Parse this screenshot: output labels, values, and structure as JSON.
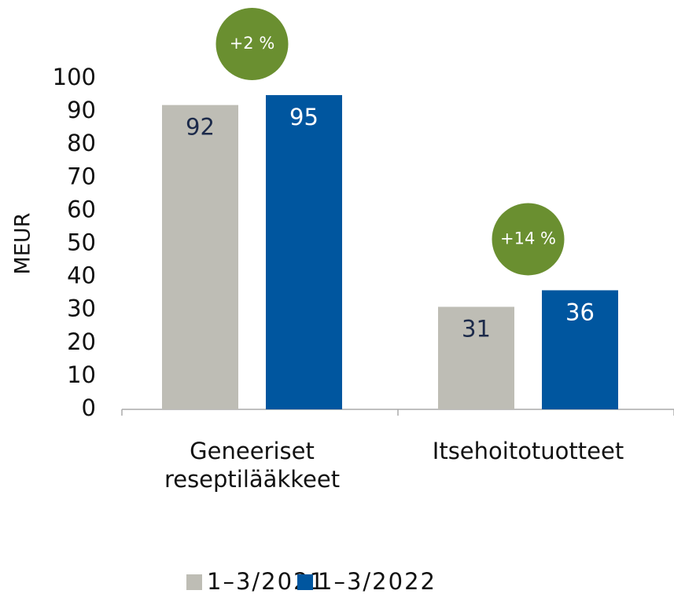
{
  "chart_data": {
    "type": "bar",
    "y_label": "MEUR",
    "categories": [
      "Geneeriset reseptilääkkeet",
      "Itsehoitotuotteet"
    ],
    "series": [
      {
        "name": "1–3/2021",
        "color": "#bebdb5",
        "label_color": "#1c2a4a",
        "values": [
          92,
          31
        ]
      },
      {
        "name": "1–3/2022",
        "color": "#00569f",
        "label_color": "#ffffff",
        "values": [
          95,
          36
        ]
      }
    ],
    "annotations": [
      "+2 %",
      "+14 %"
    ],
    "annotation_color": "#6a8f30",
    "ylim": [
      0,
      100
    ],
    "yticks": [
      0,
      10,
      20,
      30,
      40,
      50,
      60,
      70,
      80,
      90,
      100
    ],
    "legend": "bottom"
  }
}
